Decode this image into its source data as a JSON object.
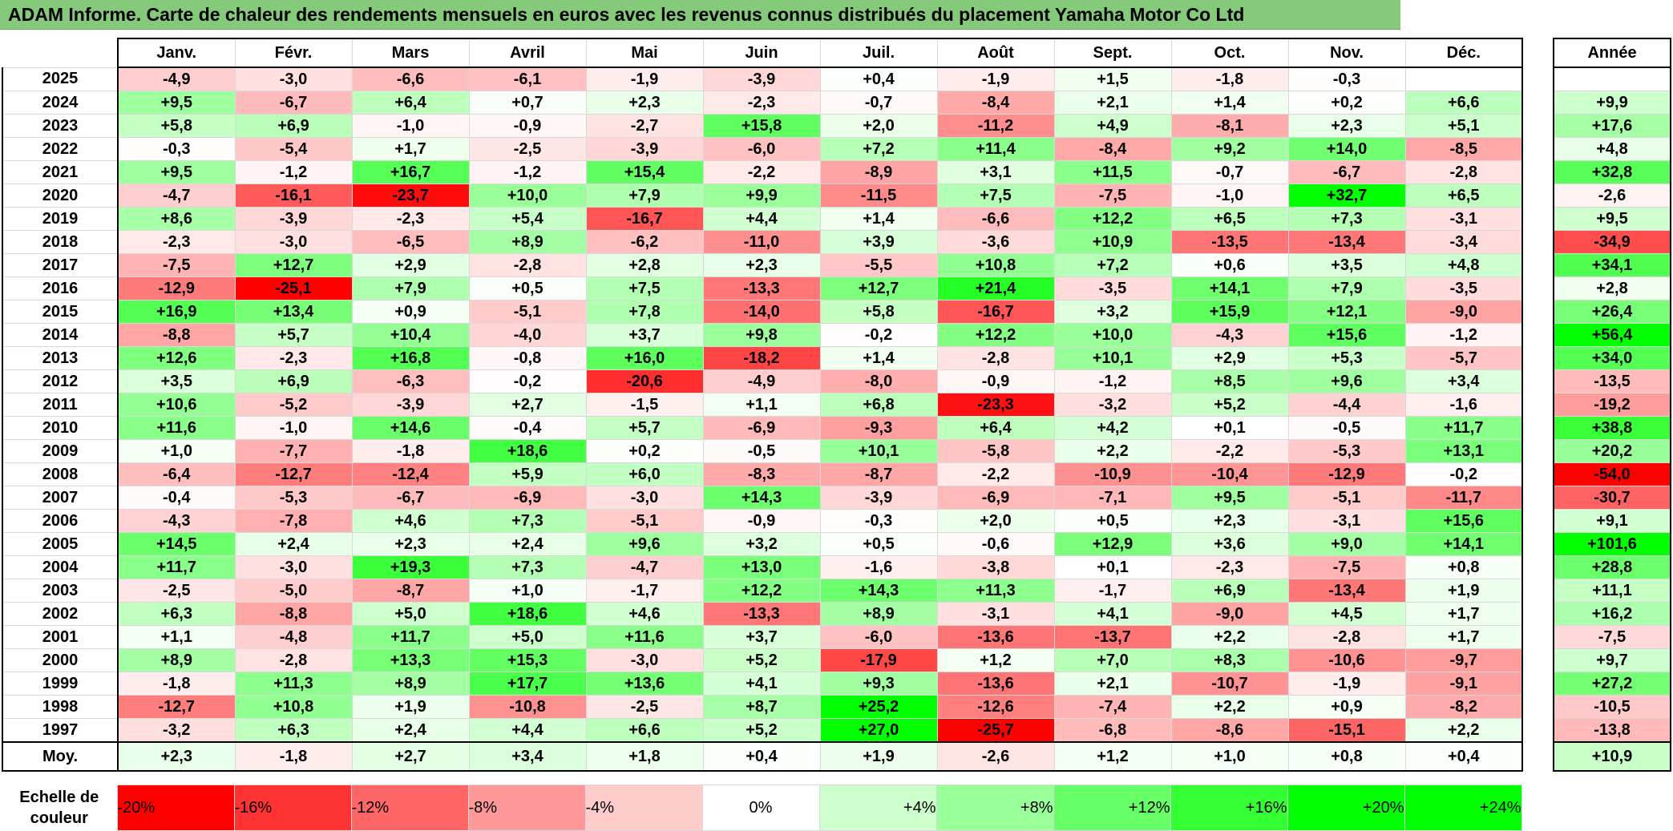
{
  "title": "ADAM Informe. Carte de chaleur des rendements mensuels en euros avec les revenus connus distribués du placement Yamaha Motor Co Ltd",
  "chart_data": {
    "type": "heatmap",
    "title": "ADAM Informe. Carte de chaleur des rendements mensuels en euros avec les revenus connus distribués du placement Yamaha Motor Co Ltd",
    "months": [
      "Janv.",
      "Févr.",
      "Mars",
      "Avril",
      "Mai",
      "Juin",
      "Juil.",
      "Août",
      "Sept.",
      "Oct.",
      "Nov.",
      "Déc."
    ],
    "annual_label": "Année",
    "rows": [
      {
        "year": "2025",
        "values": [
          -4.9,
          -3.0,
          -6.6,
          -6.1,
          -1.9,
          -3.9,
          0.4,
          -1.9,
          1.5,
          -1.8,
          -0.3,
          null
        ],
        "annual": null
      },
      {
        "year": "2024",
        "values": [
          9.5,
          -6.7,
          6.4,
          0.7,
          2.3,
          -2.3,
          -0.7,
          -8.4,
          2.1,
          1.4,
          0.2,
          6.6
        ],
        "annual": 9.9
      },
      {
        "year": "2023",
        "values": [
          5.8,
          6.9,
          -1.0,
          -0.9,
          -2.7,
          15.8,
          2.0,
          -11.2,
          4.9,
          -8.1,
          2.3,
          5.1
        ],
        "annual": 17.6
      },
      {
        "year": "2022",
        "values": [
          -0.3,
          -5.4,
          1.7,
          -2.5,
          -3.9,
          -6.0,
          7.2,
          11.4,
          -8.4,
          9.2,
          14.0,
          -8.5
        ],
        "annual": 4.8
      },
      {
        "year": "2021",
        "values": [
          9.5,
          -1.2,
          16.7,
          -1.2,
          15.4,
          -2.2,
          -8.9,
          3.1,
          11.5,
          -0.7,
          -6.7,
          -2.8
        ],
        "annual": 32.8
      },
      {
        "year": "2020",
        "values": [
          -4.7,
          -16.1,
          -23.7,
          10.0,
          7.9,
          9.9,
          -11.5,
          7.5,
          -7.5,
          -1.0,
          32.7,
          6.5
        ],
        "annual": -2.6
      },
      {
        "year": "2019",
        "values": [
          8.6,
          -3.9,
          -2.3,
          5.4,
          -16.7,
          4.4,
          1.4,
          -6.6,
          12.2,
          6.5,
          7.3,
          -3.1
        ],
        "annual": 9.5
      },
      {
        "year": "2018",
        "values": [
          -2.3,
          -3.0,
          -6.5,
          8.9,
          -6.2,
          -11.0,
          3.9,
          -3.6,
          10.9,
          -13.5,
          -13.4,
          -3.4
        ],
        "annual": -34.9
      },
      {
        "year": "2017",
        "values": [
          -7.5,
          12.7,
          2.9,
          -2.8,
          2.8,
          2.3,
          -5.5,
          10.8,
          7.2,
          0.6,
          3.5,
          4.8
        ],
        "annual": 34.1
      },
      {
        "year": "2016",
        "values": [
          -12.9,
          -25.1,
          7.9,
          0.5,
          7.5,
          -13.3,
          12.7,
          21.4,
          -3.5,
          14.1,
          7.9,
          -3.5
        ],
        "annual": 2.8
      },
      {
        "year": "2015",
        "values": [
          16.9,
          13.4,
          0.9,
          -5.1,
          7.8,
          -14.0,
          5.8,
          -16.7,
          3.2,
          15.9,
          12.1,
          -9.0
        ],
        "annual": 26.4
      },
      {
        "year": "2014",
        "values": [
          -8.8,
          5.7,
          10.4,
          -4.0,
          3.7,
          9.8,
          -0.2,
          12.2,
          10.0,
          -4.3,
          15.6,
          -1.2
        ],
        "annual": 56.4
      },
      {
        "year": "2013",
        "values": [
          12.6,
          -2.3,
          16.8,
          -0.8,
          16.0,
          -18.2,
          1.4,
          -2.8,
          10.1,
          2.9,
          5.3,
          -5.7
        ],
        "annual": 34.0
      },
      {
        "year": "2012",
        "values": [
          3.5,
          6.9,
          -6.3,
          -0.2,
          -20.6,
          -4.9,
          -8.0,
          -0.9,
          -1.2,
          8.5,
          9.6,
          3.4
        ],
        "annual": -13.5
      },
      {
        "year": "2011",
        "values": [
          10.6,
          -5.2,
          -3.9,
          2.7,
          -1.5,
          1.1,
          6.8,
          -23.3,
          -3.2,
          5.2,
          -4.4,
          -1.6
        ],
        "annual": -19.2
      },
      {
        "year": "2010",
        "values": [
          11.6,
          -1.0,
          14.6,
          -0.4,
          5.7,
          -6.9,
          -9.3,
          6.4,
          4.2,
          0.1,
          -0.5,
          11.7
        ],
        "annual": 38.8
      },
      {
        "year": "2009",
        "values": [
          1.0,
          -7.7,
          -1.8,
          18.6,
          0.2,
          -0.5,
          10.1,
          -5.8,
          2.2,
          -2.2,
          -5.3,
          13.1
        ],
        "annual": 20.2
      },
      {
        "year": "2008",
        "values": [
          -6.4,
          -12.7,
          -12.4,
          5.9,
          6.0,
          -8.3,
          -8.7,
          -2.2,
          -10.9,
          -10.4,
          -12.9,
          -0.2
        ],
        "annual": -54.0
      },
      {
        "year": "2007",
        "values": [
          -0.4,
          -5.3,
          -6.7,
          -6.9,
          -3.0,
          14.3,
          -3.9,
          -6.9,
          -7.1,
          9.5,
          -5.1,
          -11.7
        ],
        "annual": -30.7
      },
      {
        "year": "2006",
        "values": [
          -4.3,
          -7.8,
          4.6,
          7.3,
          -5.1,
          -0.9,
          -0.3,
          2.0,
          0.5,
          2.3,
          -3.1,
          15.6
        ],
        "annual": 9.1
      },
      {
        "year": "2005",
        "values": [
          14.5,
          2.4,
          2.3,
          2.4,
          9.6,
          3.2,
          0.5,
          -0.6,
          12.9,
          3.6,
          9.0,
          14.1
        ],
        "annual": 101.6
      },
      {
        "year": "2004",
        "values": [
          11.7,
          -3.0,
          19.3,
          7.3,
          -4.7,
          13.0,
          -1.6,
          -3.8,
          0.1,
          -2.3,
          -7.5,
          0.8
        ],
        "annual": 28.8
      },
      {
        "year": "2003",
        "values": [
          -2.5,
          -5.0,
          -8.7,
          1.0,
          -1.7,
          12.2,
          14.3,
          11.3,
          -1.7,
          6.9,
          -13.4,
          1.9
        ],
        "annual": 11.1
      },
      {
        "year": "2002",
        "values": [
          6.3,
          -8.8,
          5.0,
          18.6,
          4.6,
          -13.3,
          8.9,
          -3.1,
          4.1,
          -9.0,
          4.5,
          1.7
        ],
        "annual": 16.2
      },
      {
        "year": "2001",
        "values": [
          1.1,
          -4.8,
          11.7,
          5.0,
          11.6,
          3.7,
          -6.0,
          -13.6,
          -13.7,
          2.2,
          -2.8,
          1.7
        ],
        "annual": -7.5
      },
      {
        "year": "2000",
        "values": [
          8.9,
          -2.8,
          13.3,
          15.3,
          -3.0,
          5.2,
          -17.9,
          1.2,
          7.0,
          8.3,
          -10.6,
          -9.7
        ],
        "annual": 9.7
      },
      {
        "year": "1999",
        "values": [
          -1.8,
          11.3,
          8.9,
          17.7,
          13.6,
          4.1,
          9.3,
          -13.6,
          2.1,
          -10.7,
          -1.9,
          -9.1
        ],
        "annual": 27.2
      },
      {
        "year": "1998",
        "values": [
          -12.7,
          10.8,
          1.9,
          -10.8,
          -2.5,
          8.7,
          25.2,
          -12.6,
          -7.4,
          2.2,
          0.9,
          -8.2
        ],
        "annual": -10.5
      },
      {
        "year": "1997",
        "values": [
          -3.2,
          6.3,
          2.4,
          4.4,
          6.6,
          5.2,
          27.0,
          -25.7,
          -6.8,
          -8.6,
          -15.1,
          2.2
        ],
        "annual": -13.8
      }
    ],
    "average": {
      "label": "Moy.",
      "values": [
        2.3,
        -1.8,
        2.7,
        3.4,
        1.8,
        0.4,
        1.9,
        -2.6,
        1.2,
        1.0,
        0.8,
        0.4
      ],
      "annual": 10.9
    },
    "color_scale": {
      "label": "Echelle de couleur",
      "steps": [
        "-20%",
        "-16%",
        "-12%",
        "-8%",
        "-4%",
        "0%",
        "+4%",
        "+8%",
        "+12%",
        "+16%",
        "+20%",
        "+24%"
      ],
      "step_values": [
        -20,
        -16,
        -12,
        -8,
        -4,
        0,
        4,
        8,
        12,
        16,
        20,
        24
      ],
      "negative_color": "#ff0000",
      "positive_color": "#00ff00",
      "neutral_color": "#ffffff"
    }
  }
}
